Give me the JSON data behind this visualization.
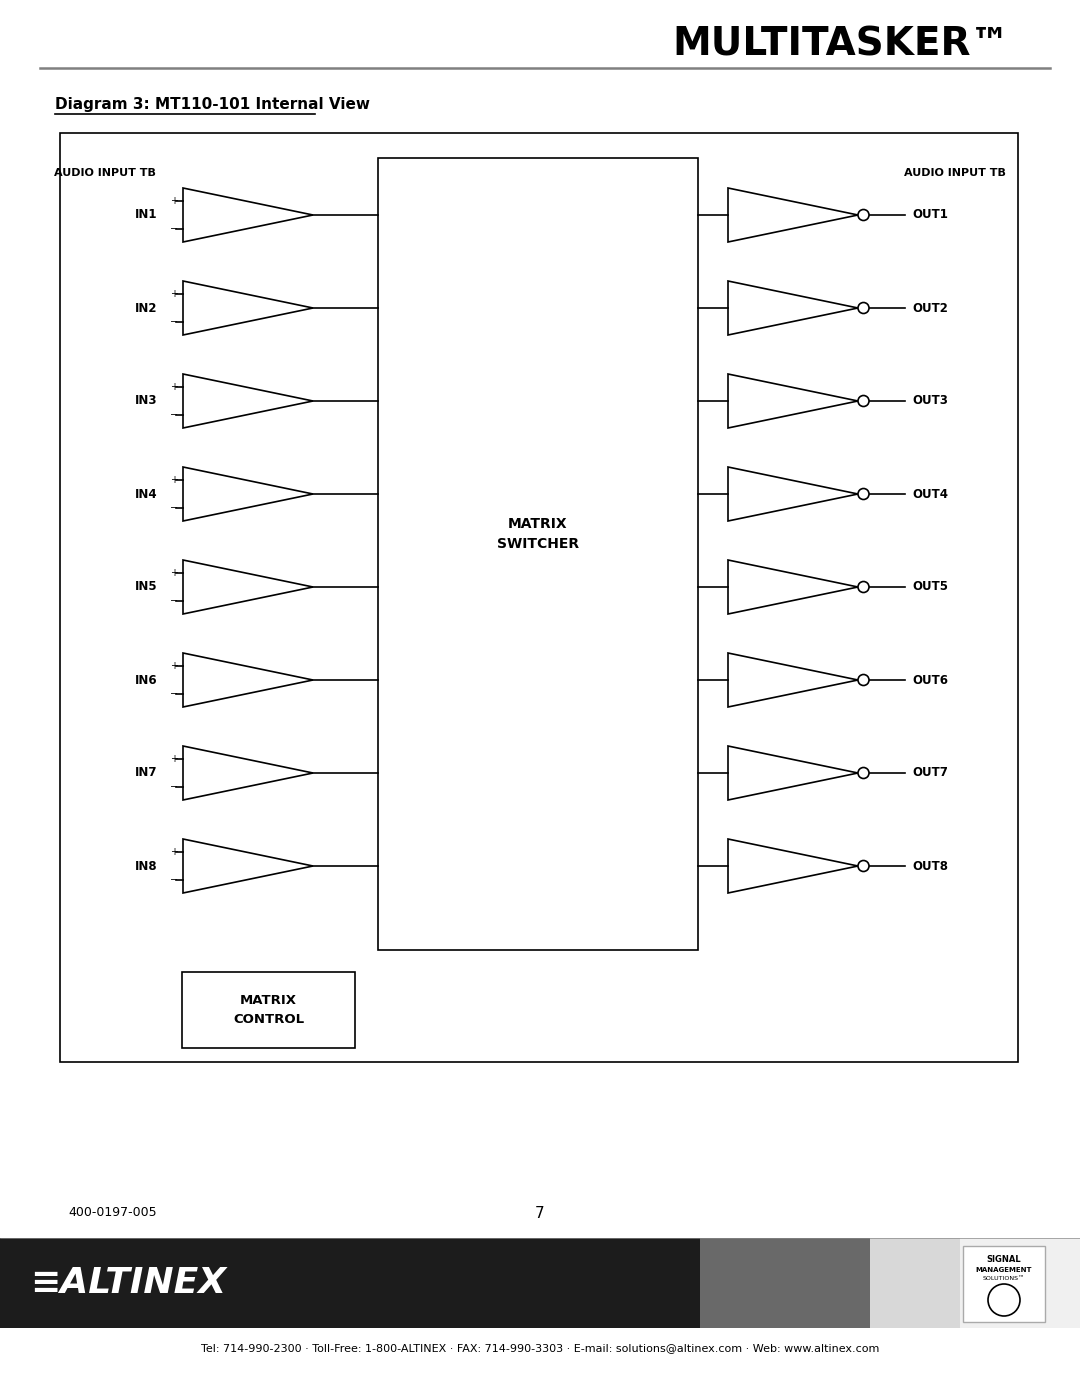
{
  "title": "MULTITASKER™",
  "diagram_title": "Diagram 3: MT110-101 Internal View",
  "page_number": "7",
  "doc_number": "400-0197-005",
  "contact_info": "Tel: 714-990-2300 · Toll-Free: 1-800-ALTINEX · FAX: 714-990-3303 · E-mail: solutions@altinex.com · Web: www.altinex.com",
  "inputs": [
    "IN1",
    "IN2",
    "IN3",
    "IN4",
    "IN5",
    "IN6",
    "IN7",
    "IN8"
  ],
  "outputs": [
    "OUT1",
    "OUT2",
    "OUT3",
    "OUT4",
    "OUT5",
    "OUT6",
    "OUT7",
    "OUT8"
  ],
  "audio_input_label": "AUDIO INPUT TB",
  "matrix_switcher_label": "MATRIX\nSWITCHER",
  "matrix_control_label": "MATRIX\nCONTROL",
  "bg_color": "#ffffff",
  "line_color": "#000000",
  "header_line_color": "#808080",
  "footer_bg_color": "#1a1a1a"
}
